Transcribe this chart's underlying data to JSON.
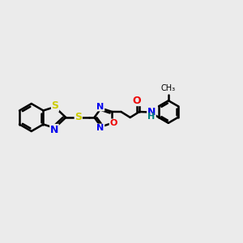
{
  "bg_color": "#ebebeb",
  "line_color": "#000000",
  "S_color": "#cccc00",
  "N_color": "#0000ee",
  "O_color": "#ee0000",
  "NH_color": "#008080",
  "line_width": 1.8,
  "fig_size": [
    3.0,
    3.0
  ],
  "dpi": 100,
  "xlim": [
    0,
    12
  ],
  "ylim": [
    0,
    10
  ]
}
